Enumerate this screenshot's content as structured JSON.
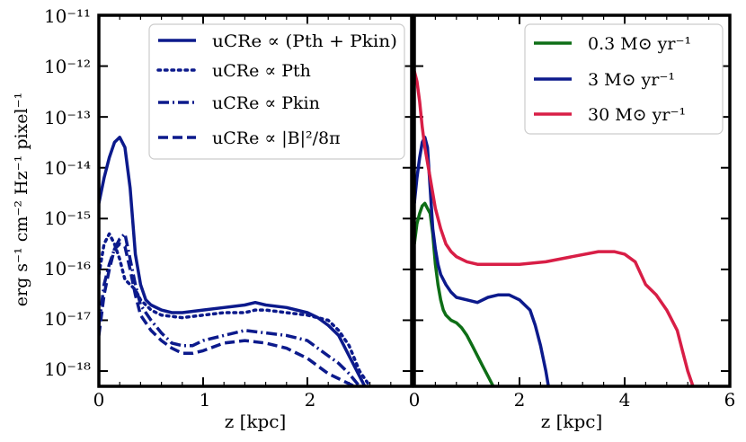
{
  "figure": {
    "ylabel": "erg s⁻¹ cm⁻² Hz⁻¹ pixel⁻¹",
    "y_tick_labels": [
      "10⁻¹¹",
      "10⁻¹²",
      "10⁻¹³",
      "10⁻¹⁴",
      "10⁻¹⁵",
      "10⁻¹⁶",
      "10⁻¹⁷",
      "10⁻¹⁸"
    ]
  },
  "chart_data": [
    {
      "type": "line",
      "panel": "left",
      "xlabel": "z [kpc]",
      "ylabel": "erg s⁻¹ cm⁻² Hz⁻¹ pixel⁻¹",
      "xlim": [
        0,
        3
      ],
      "ylim_log10": [
        -18.3,
        -11
      ],
      "yscale": "log",
      "x_ticks": [
        0,
        1,
        2
      ],
      "x_tick_labels": [
        "0",
        "1",
        "2"
      ],
      "legend_position": "top-right",
      "series": [
        {
          "name": "uCRe ∝ (Pth + Pkin)",
          "legend_label": "u_CRe ∝ (P_th + P_kin)",
          "color": "#0c1a8c",
          "dash": "solid",
          "x": [
            0.0,
            0.05,
            0.1,
            0.15,
            0.2,
            0.25,
            0.3,
            0.35,
            0.4,
            0.45,
            0.5,
            0.6,
            0.7,
            0.8,
            1.0,
            1.2,
            1.4,
            1.5,
            1.6,
            1.8,
            2.0,
            2.1,
            2.2,
            2.3,
            2.4,
            2.5,
            2.55
          ],
          "log10y": [
            -14.7,
            -14.2,
            -13.8,
            -13.5,
            -13.4,
            -13.6,
            -14.4,
            -15.7,
            -16.3,
            -16.6,
            -16.7,
            -16.8,
            -16.85,
            -16.85,
            -16.8,
            -16.75,
            -16.7,
            -16.65,
            -16.7,
            -16.75,
            -16.85,
            -16.95,
            -17.1,
            -17.3,
            -17.7,
            -18.1,
            -18.3
          ]
        },
        {
          "name": "uCRe ∝ Pth",
          "legend_label": "u_CRe ∝ P_th",
          "color": "#0c1a8c",
          "dash": "dotted",
          "x": [
            0.0,
            0.05,
            0.1,
            0.15,
            0.2,
            0.25,
            0.3,
            0.35,
            0.4,
            0.5,
            0.6,
            0.8,
            1.0,
            1.2,
            1.4,
            1.5,
            1.6,
            1.8,
            2.0,
            2.2,
            2.3,
            2.4,
            2.5,
            2.6
          ],
          "log10y": [
            -16.1,
            -15.5,
            -15.3,
            -15.5,
            -15.8,
            -16.2,
            -16.3,
            -16.4,
            -16.6,
            -16.8,
            -16.9,
            -16.95,
            -16.9,
            -16.85,
            -16.85,
            -16.8,
            -16.8,
            -16.85,
            -16.9,
            -17.0,
            -17.2,
            -17.5,
            -18.0,
            -18.3
          ]
        },
        {
          "name": "uCRe ∝ Pkin",
          "legend_label": "u_CRe ∝ P_kin",
          "color": "#0c1a8c",
          "dash": "dashdot",
          "x": [
            0.0,
            0.05,
            0.1,
            0.15,
            0.2,
            0.25,
            0.3,
            0.35,
            0.4,
            0.5,
            0.6,
            0.7,
            0.8,
            0.9,
            1.0,
            1.2,
            1.4,
            1.6,
            1.8,
            2.0,
            2.1,
            2.2,
            2.3,
            2.4,
            2.5
          ],
          "log10y": [
            -17.1,
            -16.3,
            -15.9,
            -15.6,
            -15.4,
            -15.3,
            -15.8,
            -16.3,
            -16.7,
            -17.0,
            -17.25,
            -17.45,
            -17.5,
            -17.5,
            -17.4,
            -17.3,
            -17.2,
            -17.25,
            -17.3,
            -17.4,
            -17.55,
            -17.7,
            -17.85,
            -18.05,
            -18.3
          ]
        },
        {
          "name": "uCRe ∝ |B|²/8π",
          "legend_label": "u_CRe ∝ |B|²/8π",
          "color": "#0c1a8c",
          "dash": "dashed",
          "x": [
            0.0,
            0.05,
            0.1,
            0.15,
            0.2,
            0.25,
            0.3,
            0.35,
            0.4,
            0.5,
            0.6,
            0.7,
            0.8,
            0.9,
            1.0,
            1.2,
            1.4,
            1.6,
            1.8,
            2.0,
            2.1,
            2.2,
            2.3,
            2.4,
            2.45
          ],
          "log10y": [
            -17.3,
            -16.5,
            -16.0,
            -15.6,
            -15.5,
            -15.55,
            -16.0,
            -16.5,
            -16.9,
            -17.2,
            -17.4,
            -17.55,
            -17.65,
            -17.65,
            -17.6,
            -17.45,
            -17.4,
            -17.45,
            -17.55,
            -17.75,
            -17.9,
            -18.05,
            -18.15,
            -18.25,
            -18.3
          ]
        }
      ]
    },
    {
      "type": "line",
      "panel": "right",
      "xlabel": "z [kpc]",
      "xlim": [
        0,
        6
      ],
      "ylim_log10": [
        -18.3,
        -11
      ],
      "yscale": "log",
      "x_ticks": [
        0,
        2,
        4,
        6
      ],
      "x_tick_labels": [
        "0",
        "2",
        "4",
        "6"
      ],
      "legend_position": "top-right",
      "series": [
        {
          "name": "0.3 M⊙ yr⁻¹",
          "color": "#0e6e16",
          "dash": "solid",
          "x": [
            0.0,
            0.05,
            0.1,
            0.15,
            0.2,
            0.25,
            0.3,
            0.35,
            0.4,
            0.45,
            0.5,
            0.55,
            0.6,
            0.7,
            0.8,
            0.9,
            1.0,
            1.1,
            1.2,
            1.3,
            1.4,
            1.5
          ],
          "log10y": [
            -15.5,
            -15.1,
            -14.9,
            -14.75,
            -14.7,
            -14.8,
            -14.9,
            -15.3,
            -15.9,
            -16.3,
            -16.6,
            -16.8,
            -16.9,
            -17.0,
            -17.05,
            -17.15,
            -17.3,
            -17.5,
            -17.7,
            -17.9,
            -18.1,
            -18.3
          ]
        },
        {
          "name": "3 M⊙ yr⁻¹",
          "color": "#0c1a8c",
          "dash": "solid",
          "x": [
            0.0,
            0.05,
            0.1,
            0.15,
            0.2,
            0.25,
            0.3,
            0.35,
            0.4,
            0.45,
            0.5,
            0.6,
            0.7,
            0.8,
            1.0,
            1.2,
            1.4,
            1.6,
            1.8,
            2.0,
            2.1,
            2.2,
            2.3,
            2.4,
            2.5,
            2.55
          ],
          "log10y": [
            -14.7,
            -14.2,
            -13.8,
            -13.5,
            -13.4,
            -13.6,
            -14.4,
            -15.2,
            -15.6,
            -15.9,
            -16.1,
            -16.3,
            -16.45,
            -16.55,
            -16.6,
            -16.65,
            -16.55,
            -16.5,
            -16.5,
            -16.6,
            -16.7,
            -16.8,
            -17.1,
            -17.5,
            -18.0,
            -18.3
          ]
        },
        {
          "name": "30 M⊙ yr⁻¹",
          "color": "#d81e46",
          "dash": "solid",
          "x": [
            0.0,
            0.05,
            0.1,
            0.15,
            0.2,
            0.3,
            0.4,
            0.5,
            0.6,
            0.7,
            0.8,
            0.9,
            1.0,
            1.2,
            1.5,
            2.0,
            2.5,
            3.0,
            3.5,
            3.8,
            4.0,
            4.2,
            4.4,
            4.6,
            4.8,
            5.0,
            5.1,
            5.2,
            5.3
          ],
          "log10y": [
            -12.1,
            -12.3,
            -12.7,
            -13.2,
            -13.6,
            -14.2,
            -14.8,
            -15.2,
            -15.5,
            -15.65,
            -15.75,
            -15.8,
            -15.85,
            -15.9,
            -15.9,
            -15.9,
            -15.85,
            -15.75,
            -15.65,
            -15.65,
            -15.7,
            -15.85,
            -16.3,
            -16.5,
            -16.8,
            -17.2,
            -17.6,
            -18.0,
            -18.3
          ]
        }
      ]
    }
  ]
}
